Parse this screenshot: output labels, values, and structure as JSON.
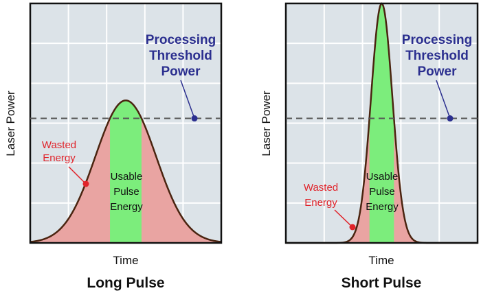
{
  "colors": {
    "plot_bg": "#dce3e8",
    "grid": "#ffffff",
    "wasted_fill": "#e9a4a2",
    "usable_fill": "#7ced7c",
    "curve": "#4a2410",
    "threshold_line": "#555555",
    "threshold_label": "#2b2f8f",
    "wasted_label": "#e0232a"
  },
  "labels": {
    "wasted": [
      "Wasted",
      "Energy"
    ],
    "usable": [
      "Usable",
      "Pulse",
      "Energy"
    ],
    "threshold": [
      "Processing",
      "Threshold",
      "Power"
    ]
  },
  "panels": [
    {
      "id": "long",
      "title": "Long Pulse",
      "xlabel": "Time",
      "ylabel": "Laser Power",
      "peak_fraction": 0.595,
      "threshold_fraction": 0.52,
      "width_fraction": 0.35
    },
    {
      "id": "short",
      "title": "Short Pulse",
      "xlabel": "Time",
      "ylabel": "Laser Power",
      "peak_fraction": 1.0,
      "threshold_fraction": 0.52,
      "width_fraction": 0.123
    }
  ]
}
